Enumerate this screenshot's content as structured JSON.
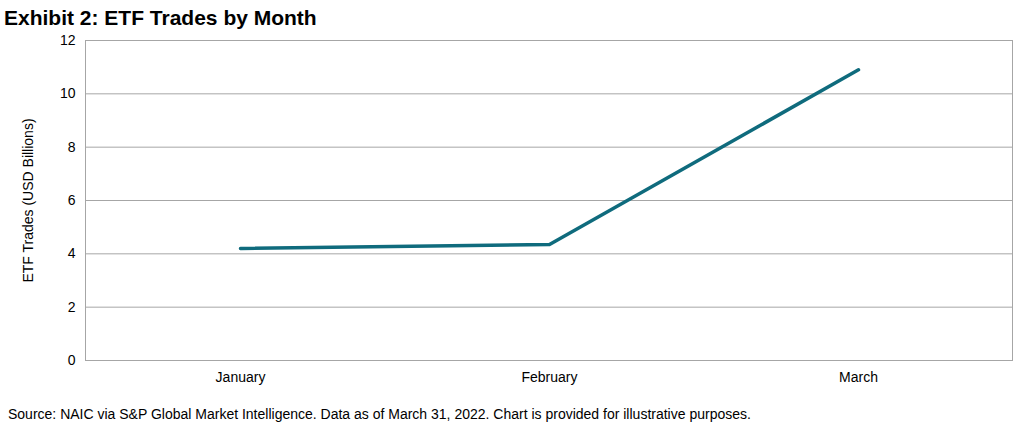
{
  "chart_data": {
    "type": "line",
    "title": "Exhibit 2: ETF Trades by Month",
    "y_label": "ETF Trades (USD Billions)",
    "categories": [
      "January",
      "February",
      "March"
    ],
    "values": [
      4.2,
      4.35,
      10.9
    ],
    "color": "#0f6b7d",
    "ylim": [
      0,
      12
    ],
    "yticks": [
      0,
      2,
      4,
      6,
      8,
      10,
      12
    ],
    "grid": true,
    "caption": "Source: NAIC via S&P Global Market Intelligence.  Data as of March 31, 2022.  Chart is provided for illustrative purposes."
  }
}
